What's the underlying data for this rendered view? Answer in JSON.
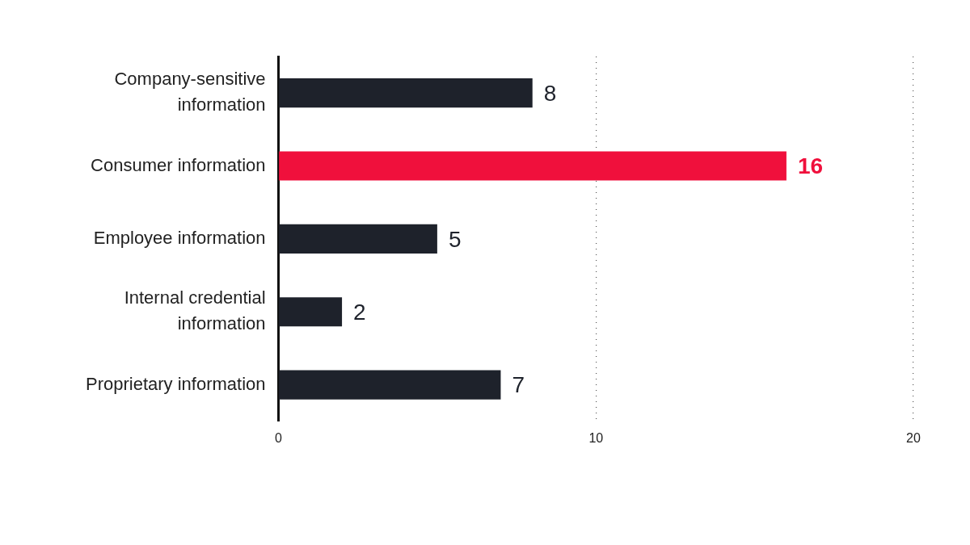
{
  "chart_data": {
    "type": "bar",
    "orientation": "horizontal",
    "categories": [
      "Company-sensitive information",
      "Consumer information",
      "Employee information",
      "Internal credential information",
      "Proprietary information"
    ],
    "values": [
      8,
      16,
      5,
      2,
      7
    ],
    "colors": [
      "#1e222b",
      "#f0103c",
      "#1e222b",
      "#1e222b",
      "#1e222b"
    ],
    "xlim": [
      0,
      20
    ],
    "xticks": [
      0,
      10,
      20
    ],
    "grid": "x",
    "data_labels": true
  }
}
